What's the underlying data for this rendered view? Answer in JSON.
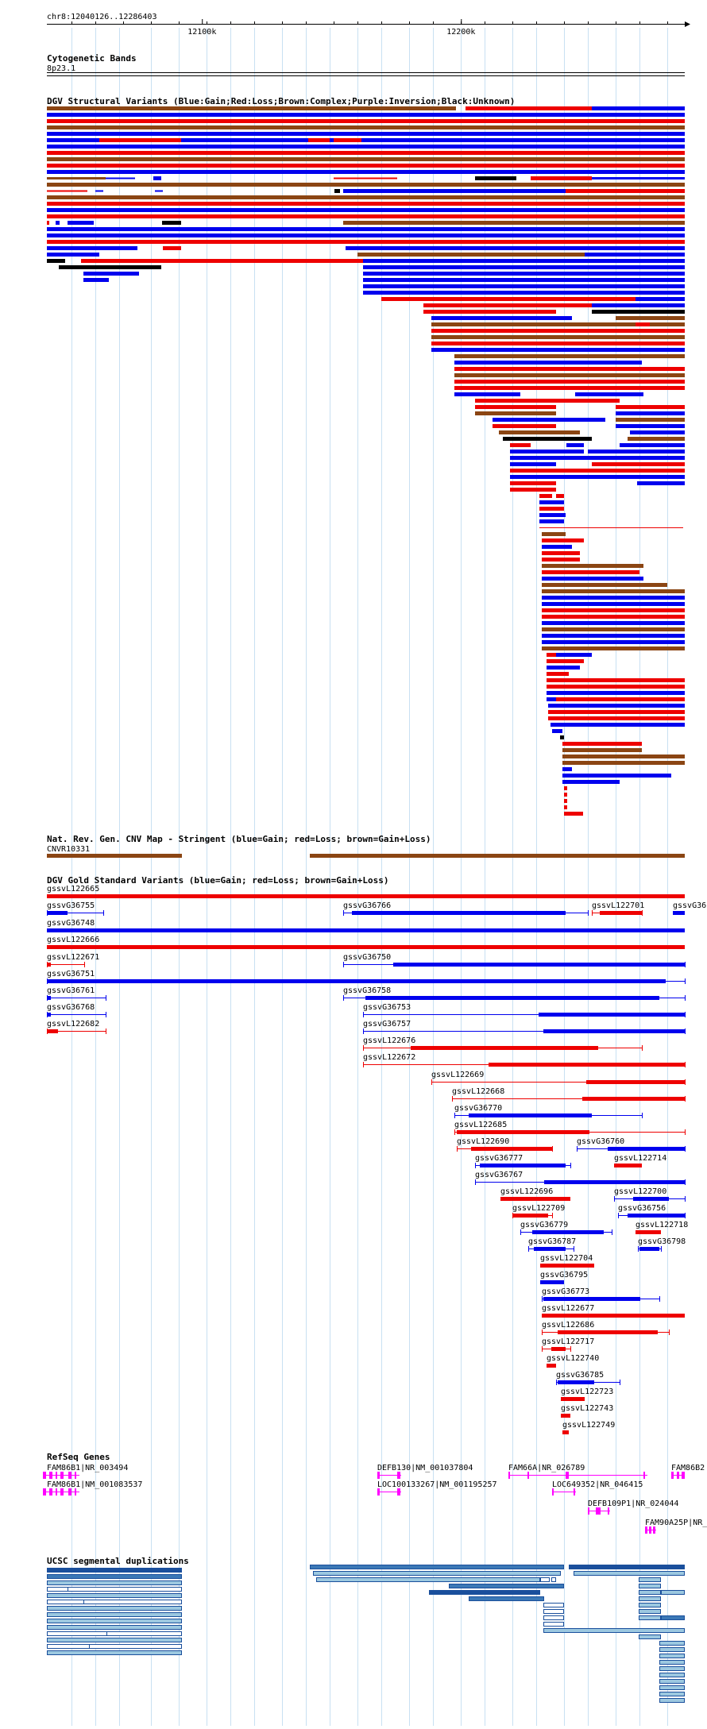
{
  "location": "chr8:12040126..12286403",
  "ruler": {
    "ticks": [
      {
        "pos": 12100000,
        "label": "12100k"
      },
      {
        "pos": 12200000,
        "label": "12200k"
      }
    ]
  },
  "colors": {
    "blue": "#0000ee",
    "red": "#ee0000",
    "brown": "#8b4513",
    "black": "#000000",
    "purple": "#800080",
    "magenta": "#ff00ff",
    "dup_dark": "#1a4f9c",
    "dup_mid": "#3b78b6",
    "dup_light": "#9cc8e0"
  },
  "tracks": {
    "cyto": {
      "title": "Cytogenetic Bands",
      "band": "8p23.1"
    },
    "dgv": {
      "title": "DGV Structural Variants (Blue:Gain;Red:Loss;Brown:Complex;Purple:Inversion;Black:Unknown)"
    },
    "nrg": {
      "title": "Nat. Rev. Gen. CNV Map - Stringent (blue=Gain; red=Loss; brown=Gain+Loss)",
      "label": "CNVR10331"
    },
    "gold": {
      "title": "DGV Gold Standard Variants (blue=Gain; red=Loss; brown=Gain+Loss)",
      "labels": [
        "gssvL122665",
        "gssvG36755",
        "gssvG36766",
        "gssvL122701",
        "gssvG36",
        "gssvG36748",
        "gssvL122666",
        "gssvL122671",
        "gssvG36750",
        "gssvG36751",
        "gssvG36761",
        "gssvG36758",
        "gssvG36768",
        "gssvG36753",
        "gssvL122682",
        "gssvG36757",
        "gssvL122676",
        "gssvL122672",
        "gssvL122669",
        "gssvL122668",
        "gssvG36770",
        "gssvL122685",
        "gssvL122690",
        "gssvG36760",
        "gssvG36777",
        "gssvL122714",
        "gssvG36767",
        "gssvL122696",
        "gssvL122700",
        "gssvL122709",
        "gssvG36756",
        "gssvG36779",
        "gssvL122718",
        "gssvG36787",
        "gssvG36798",
        "gssvL122704",
        "gssvG36795",
        "gssvG36773",
        "gssvL122677",
        "gssvL122686",
        "gssvL122717",
        "gssvL122740",
        "gssvG36785",
        "gssvL122723",
        "gssvL122743",
        "gssvL122749"
      ]
    },
    "refseq": {
      "title": "RefSeq Genes",
      "labels": [
        "FAM86B1|NR_003494",
        "FAM86B1|NM_001083537",
        "DEFB130|NM_001037804",
        "LOC100133267|NM_001195257",
        "FAM66A|NR_026789",
        "LOC649352|NR_046415",
        "FAM86B2",
        "DEFB109P1|NR_024044",
        "FAM90A25P|NR_"
      ]
    },
    "segdup": {
      "title": "UCSC segmental duplications"
    }
  }
}
